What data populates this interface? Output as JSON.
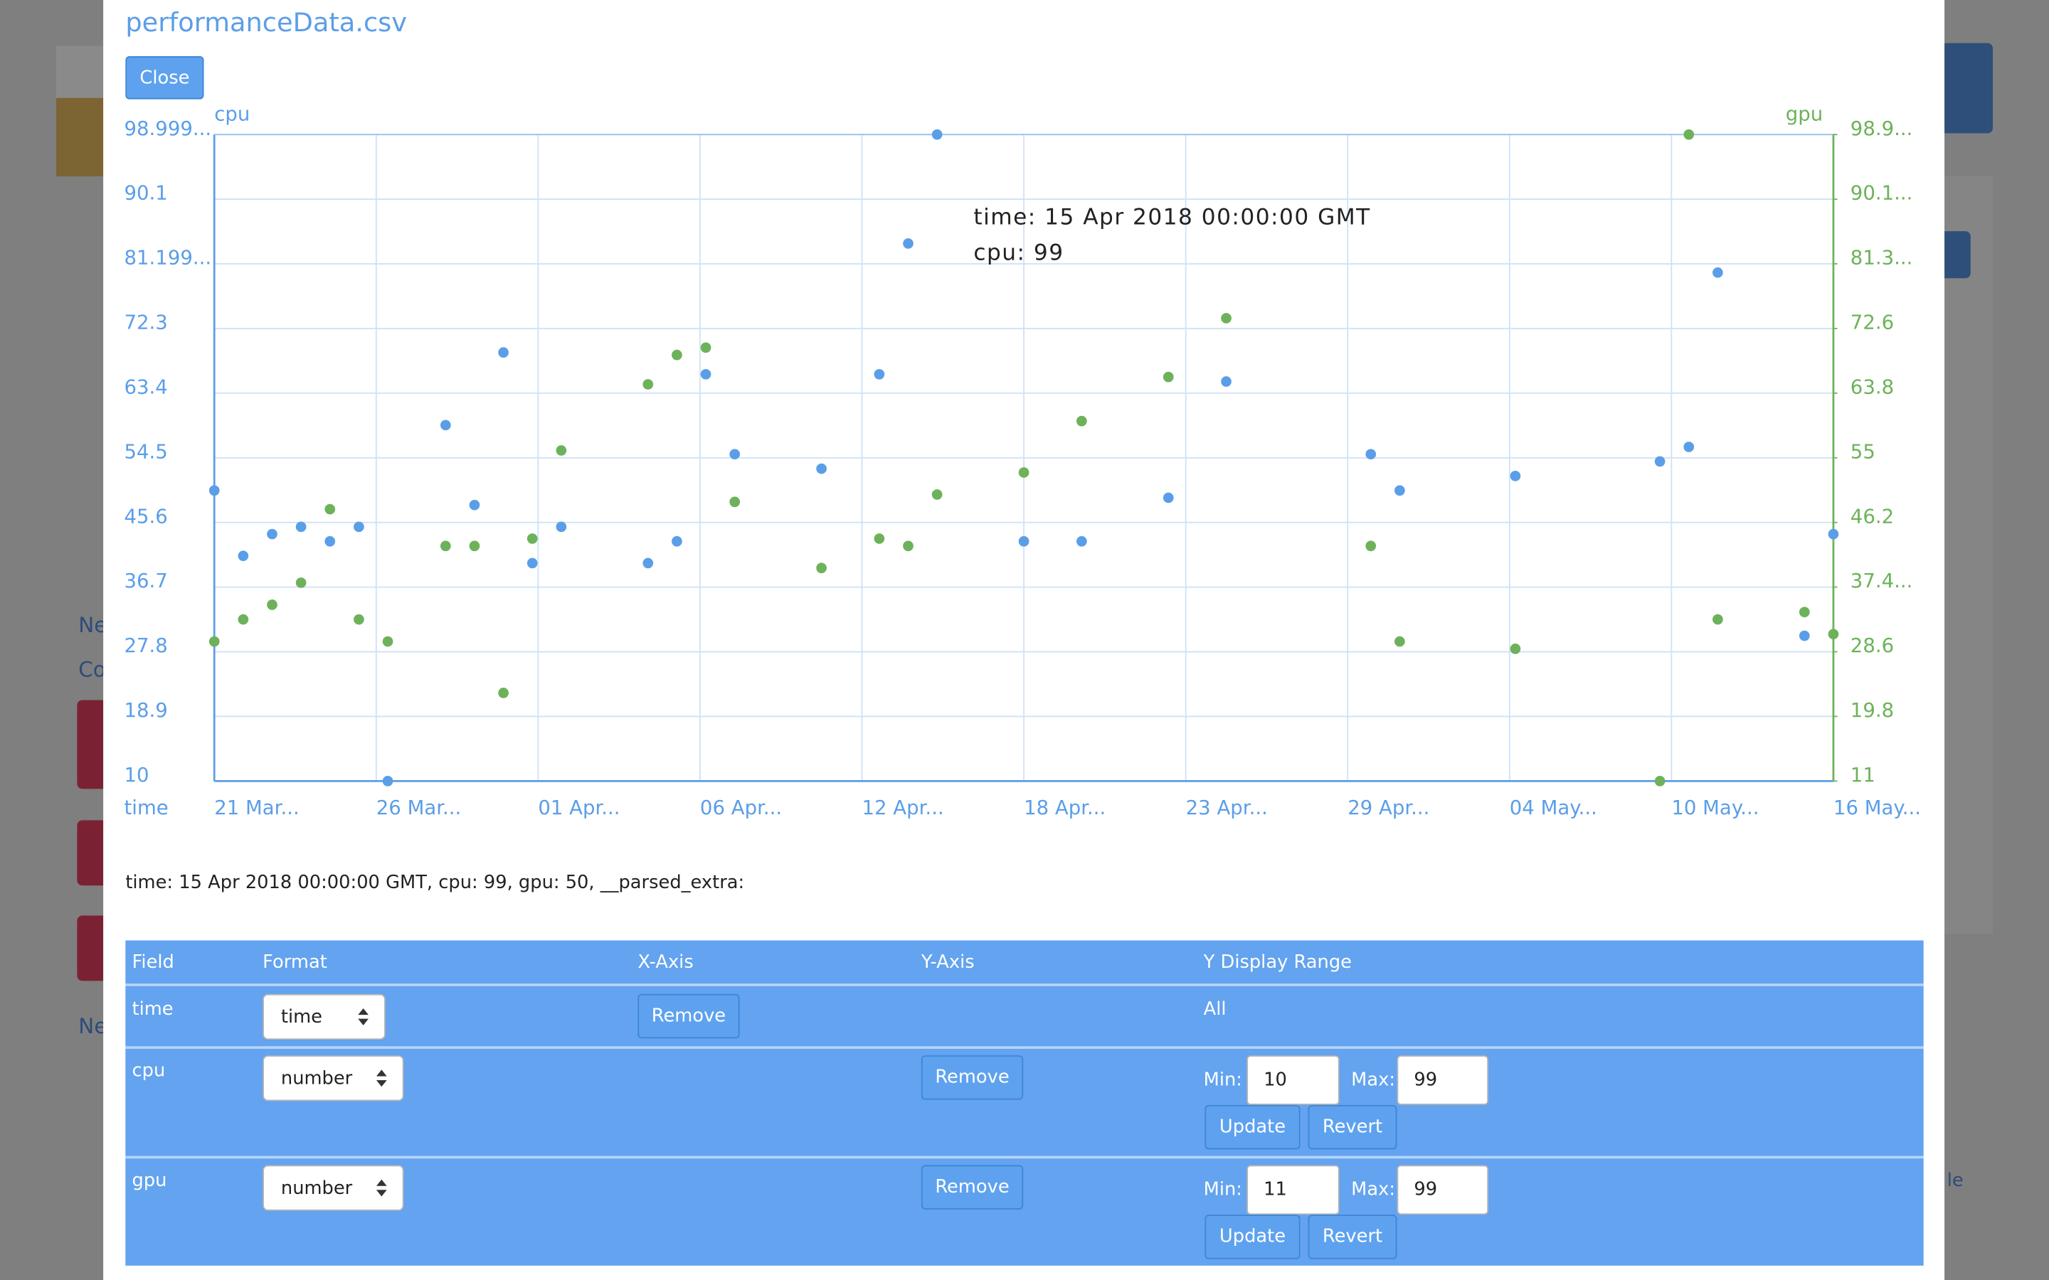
{
  "background_texts": [
    "Ne",
    "Co",
    "Ne",
    "le"
  ],
  "title": "performanceData.csv",
  "close": "Close",
  "chart_data": {
    "type": "scatter",
    "y_label": "cpu",
    "y2_label": "gpu",
    "x_label": "time",
    "x": [
      "2018-03-21",
      "2018-03-22",
      "2018-03-23",
      "2018-03-24",
      "2018-03-25",
      "2018-03-26",
      "2018-03-27",
      "2018-03-29",
      "2018-03-30",
      "2018-03-31",
      "2018-04-01",
      "2018-04-02",
      "2018-04-05",
      "2018-04-06",
      "2018-04-07",
      "2018-04-08",
      "2018-04-11",
      "2018-04-13",
      "2018-04-14",
      "2018-04-15",
      "2018-04-18",
      "2018-04-20",
      "2018-04-23",
      "2018-04-25",
      "2018-04-30",
      "2018-05-01",
      "2018-05-05",
      "2018-05-10",
      "2018-05-11",
      "2018-05-12",
      "2018-05-15",
      "2018-05-16"
    ],
    "series": [
      {
        "name": "cpu",
        "color": "#5b9ee8",
        "values": [
          50,
          41,
          44,
          45,
          43,
          45,
          10,
          59,
          48,
          69,
          40,
          45,
          40,
          43,
          66,
          55,
          53,
          66,
          84,
          99,
          43,
          43,
          49,
          65,
          55,
          50,
          52,
          54,
          56,
          80,
          30,
          44
        ]
      },
      {
        "name": "gpu",
        "color": "#6db25a",
        "axis": "y2",
        "values": [
          30,
          33,
          35,
          38,
          48,
          33,
          30,
          43,
          43,
          23,
          44,
          56,
          65,
          69,
          70,
          49,
          40,
          44,
          43,
          50,
          53,
          60,
          66,
          74,
          43,
          30,
          29,
          11,
          99,
          33,
          34,
          31
        ]
      }
    ],
    "xlim": [
      "2018-03-21",
      "2018-05-16"
    ],
    "xticks": [
      {
        "value": "2018-03-21T00:00",
        "label": "21 Mar..."
      },
      {
        "value": "2018-03-26T14:24",
        "label": "26 Mar..."
      },
      {
        "value": "2018-04-01T04:48",
        "label": "01 Apr..."
      },
      {
        "value": "2018-04-06T19:12",
        "label": "06 Apr..."
      },
      {
        "value": "2018-04-12T09:36",
        "label": "12 Apr..."
      },
      {
        "value": "2018-04-18T00:00",
        "label": "18 Apr..."
      },
      {
        "value": "2018-04-23T14:24",
        "label": "23 Apr..."
      },
      {
        "value": "2018-04-29T04:48",
        "label": "29 Apr..."
      },
      {
        "value": "2018-05-04T19:12",
        "label": "04 May..."
      },
      {
        "value": "2018-05-10T09:36",
        "label": "10 May..."
      },
      {
        "value": "2018-05-16T00:00",
        "label": "16 May..."
      }
    ],
    "ylim": [
      10,
      99
    ],
    "yticks": [
      10,
      18.9,
      27.8,
      36.7,
      45.6,
      54.5,
      63.4,
      72.3,
      {
        "value": 81.1999,
        "label": "81.199..."
      },
      90.1,
      {
        "value": 98.9999,
        "label": "98.999..."
      }
    ],
    "y2lim": [
      11,
      99
    ],
    "y2ticks": [
      11,
      19.8,
      28.6,
      {
        "value": 37.4,
        "label": "37.4..."
      },
      46.2,
      55,
      63.8,
      72.6,
      {
        "value": 81.3999,
        "label": "81.3..."
      },
      {
        "value": 90.1999,
        "label": "90.1..."
      },
      {
        "value": 98.9999,
        "label": "98.9..."
      }
    ],
    "grid": true,
    "tooltip": [
      "time: 15 Apr 2018 00:00:00 GMT",
      "cpu: 99"
    ]
  },
  "selection_text": "time: 15 Apr 2018 00:00:00 GMT, cpu: 99, gpu: 50, __parsed_extra:",
  "table": {
    "header": [
      "Field",
      "Format",
      "X-Axis",
      "Y-Axis",
      "Y Display Range"
    ],
    "rows": [
      {
        "field": "time",
        "format": "time",
        "x_axis": "Remove",
        "range": "All"
      },
      {
        "field": "cpu",
        "format": "number",
        "y_axis": "Remove",
        "min_label": "Min:",
        "min": "10",
        "max_label": "Max:",
        "max": "99",
        "update": "Update",
        "revert": "Revert"
      },
      {
        "field": "gpu",
        "format": "number",
        "y_axis": "Remove",
        "min_label": "Min:",
        "min": "11",
        "max_label": "Max:",
        "max": "99",
        "update": "Update",
        "revert": "Revert"
      }
    ]
  }
}
